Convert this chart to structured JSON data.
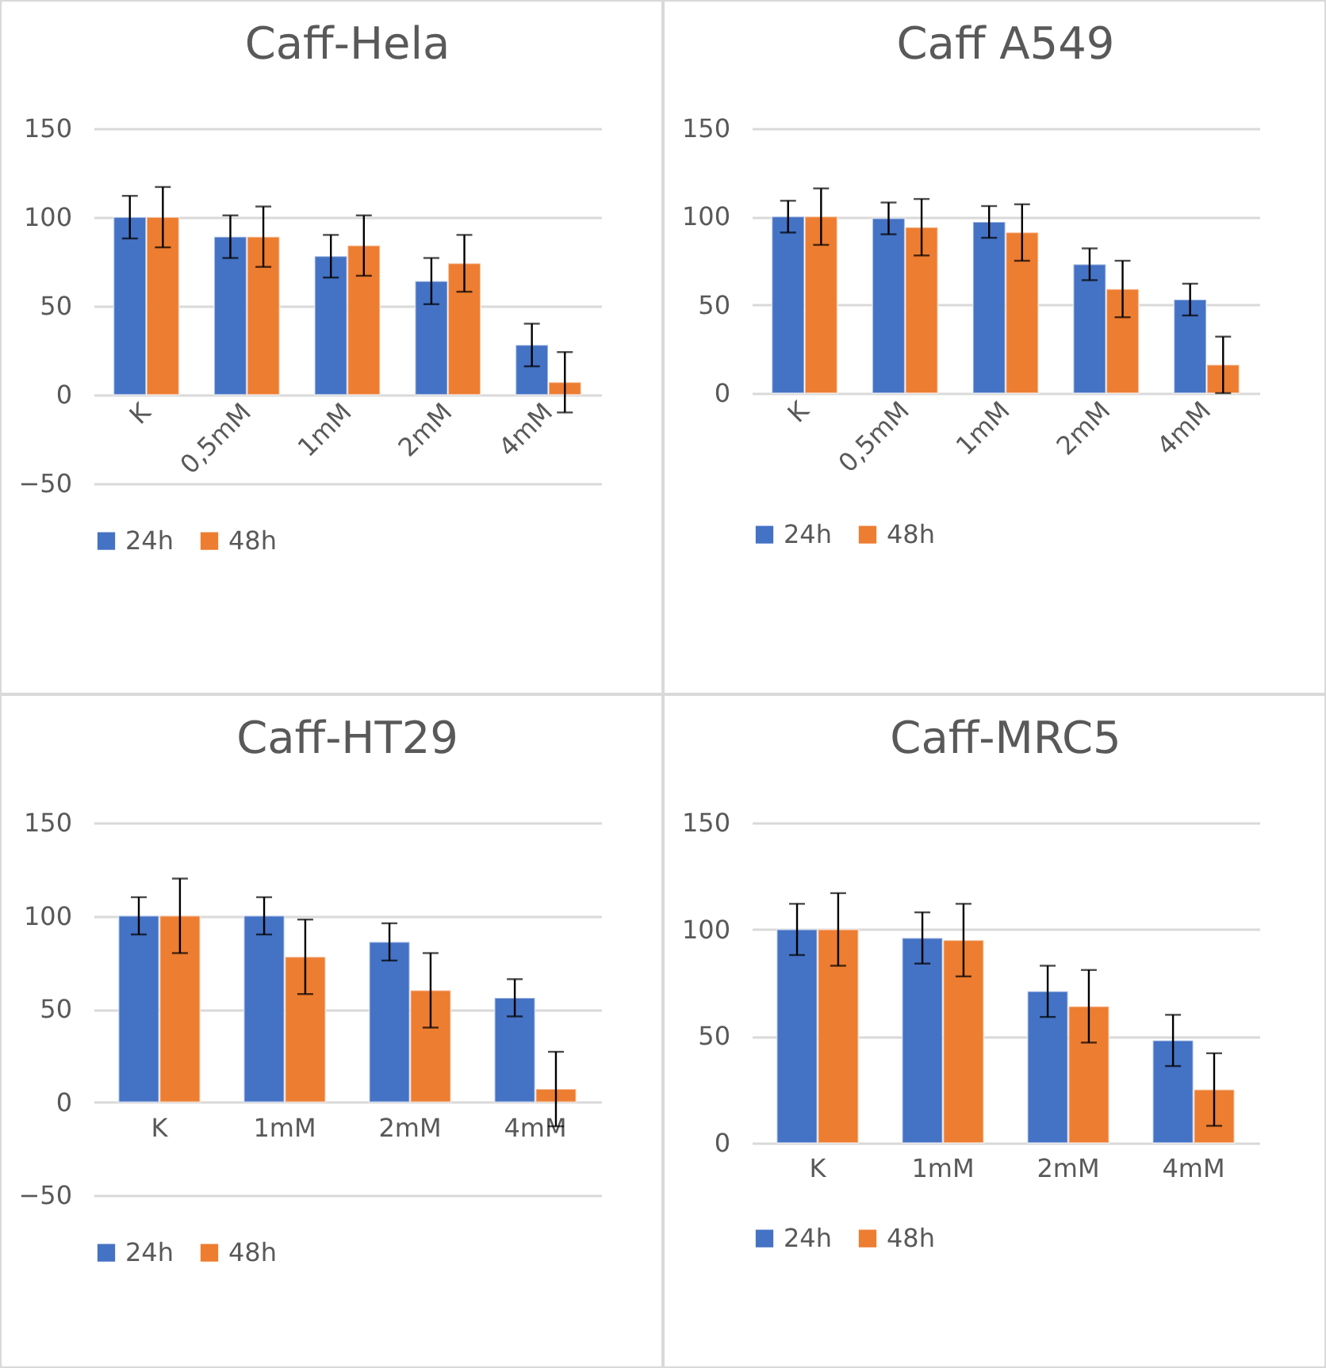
{
  "chart_data": [
    {
      "type": "bar",
      "title": "Caff-Hela",
      "categories": [
        "K",
        "0,5mM",
        "1mM",
        "2mM",
        "4mM"
      ],
      "ylim": [
        -50,
        150
      ],
      "yticks": [
        -50,
        0,
        50,
        100,
        150
      ],
      "grid": "y",
      "legend": "bottom",
      "series": [
        {
          "name": "24h",
          "color": "#4472c4",
          "values": [
            100,
            89,
            78,
            64,
            28
          ],
          "errors": [
            12,
            12,
            12,
            13,
            12
          ]
        },
        {
          "name": "48h",
          "color": "#ed7d31",
          "values": [
            100,
            89,
            84,
            74,
            7
          ],
          "errors": [
            17,
            17,
            17,
            16,
            17
          ]
        }
      ]
    },
    {
      "type": "bar",
      "title": "Caff A549",
      "categories": [
        "K",
        "0,5mM",
        "1mM",
        "2mM",
        "4mM"
      ],
      "ylim": [
        0,
        150
      ],
      "yticks": [
        0,
        50,
        100,
        150
      ],
      "grid": "y",
      "legend": "bottom",
      "series": [
        {
          "name": "24h",
          "color": "#4472c4",
          "values": [
            100,
            99,
            97,
            73,
            53
          ],
          "errors": [
            9,
            9,
            9,
            9,
            9
          ]
        },
        {
          "name": "48h",
          "color": "#ed7d31",
          "values": [
            100,
            94,
            91,
            59,
            16
          ],
          "errors": [
            16,
            16,
            16,
            16,
            16
          ]
        }
      ]
    },
    {
      "type": "bar",
      "title": "Caff-HT29",
      "categories": [
        "K",
        "1mM",
        "2mM",
        "4mM"
      ],
      "ylim": [
        -50,
        150
      ],
      "yticks": [
        -50,
        0,
        50,
        100,
        150
      ],
      "grid": "y",
      "legend": "bottom",
      "series": [
        {
          "name": "24h",
          "color": "#4472c4",
          "values": [
            100,
            100,
            86,
            56
          ],
          "errors": [
            10,
            10,
            10,
            10
          ]
        },
        {
          "name": "48h",
          "color": "#ed7d31",
          "values": [
            100,
            78,
            60,
            7
          ],
          "errors": [
            20,
            20,
            20,
            20
          ]
        }
      ]
    },
    {
      "type": "bar",
      "title": "Caff-MRC5",
      "categories": [
        "K",
        "1mM",
        "2mM",
        "4mM"
      ],
      "ylim": [
        0,
        150
      ],
      "yticks": [
        0,
        50,
        100,
        150
      ],
      "grid": "y",
      "legend": "bottom",
      "series": [
        {
          "name": "24h",
          "color": "#4472c4",
          "values": [
            100,
            96,
            71,
            48
          ],
          "errors": [
            12,
            12,
            12,
            12
          ]
        },
        {
          "name": "48h",
          "color": "#ed7d31",
          "values": [
            100,
            95,
            64,
            25
          ],
          "errors": [
            17,
            17,
            17,
            17
          ]
        }
      ]
    }
  ]
}
